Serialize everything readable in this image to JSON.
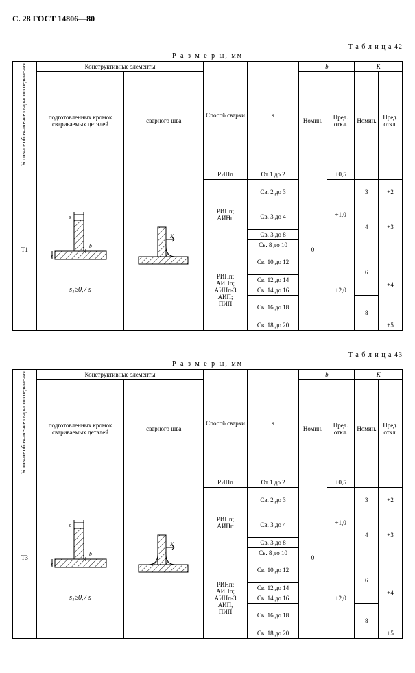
{
  "header": "С. 28  ГОСТ 14806—80",
  "table42": {
    "label": "Т а б л и ц а  42",
    "dimensions": "Р а з м е р ы,  мм",
    "headers": {
      "col1": "Условное обозначение сварного соединения",
      "construct": "Конструктивные элементы",
      "sub1": "подготовленных кромок свариваемых деталей",
      "sub2": "сварного шва",
      "method": "Способ сварки",
      "s": "s",
      "b": "b",
      "K": "K",
      "nomin": "Номин.",
      "pred": "Пред. откл."
    },
    "code": "Т1",
    "formula": "s₁≥0,7 s",
    "rows": [
      {
        "method": "РИНп",
        "s": "От 1 до 2",
        "b_nom": "",
        "b_pred": "+0,5",
        "K_nom": "",
        "K_pred": ""
      },
      {
        "method": "РИНп;\nАИНп",
        "s": "Св. 2 до 3",
        "b_nom": "",
        "b_pred": "+1,0",
        "K_nom": "3",
        "K_pred": "+2"
      },
      {
        "method": "",
        "s": "Св. 3 до 4",
        "b_nom": "",
        "b_pred": "",
        "K_nom": "4",
        "K_pred": "+3"
      },
      {
        "method": "",
        "s": "Св. 3 до 8",
        "b_nom": "",
        "b_pred": "",
        "K_nom": "",
        "K_pred": ""
      },
      {
        "method": "",
        "s": "Св. 8 до 10",
        "b_nom": "0",
        "b_pred": "",
        "K_nom": "",
        "K_pred": ""
      },
      {
        "method": "РИНп;\nАИНп;\nАИНп-З\nАИП;\nПИП",
        "s": "Св. 10 до 12",
        "b_nom": "",
        "b_pred": "+2,0",
        "K_nom": "6",
        "K_pred": "+4"
      },
      {
        "method": "",
        "s": "Св. 12 до 14",
        "b_nom": "",
        "b_pred": "",
        "K_nom": "",
        "K_pred": ""
      },
      {
        "method": "",
        "s": "Св. 14 до 16",
        "b_nom": "",
        "b_pred": "",
        "K_nom": "",
        "K_pred": ""
      },
      {
        "method": "",
        "s": "Св. 16 до 18",
        "b_nom": "",
        "b_pred": "",
        "K_nom": "8",
        "K_pred": ""
      },
      {
        "method": "",
        "s": "Св. 18 до 20",
        "b_nom": "",
        "b_pred": "",
        "K_nom": "",
        "K_pred": "+5"
      }
    ]
  },
  "table43": {
    "label": "Т а б л и ц а  43",
    "dimensions": "Р а з м е р ы,  мм",
    "code": "Т3",
    "formula": "s₁≥0,7 s",
    "rows": [
      {
        "method": "РИНп",
        "s": "От 1 до 2",
        "b_nom": "",
        "b_pred": "+0,5",
        "K_nom": "",
        "K_pred": ""
      },
      {
        "method": "РИНп;\nАИНп",
        "s": "Св. 2 до 3",
        "b_nom": "",
        "b_pred": "+1,0",
        "K_nom": "3",
        "K_pred": "+2"
      },
      {
        "method": "",
        "s": "Св. 3 до 4",
        "b_nom": "",
        "b_pred": "",
        "K_nom": "4",
        "K_pred": "+3"
      },
      {
        "method": "",
        "s": "Св. 3 до 8",
        "b_nom": "",
        "b_pred": "",
        "K_nom": "",
        "K_pred": ""
      },
      {
        "method": "",
        "s": "Св. 8 до 10",
        "b_nom": "0",
        "b_pred": "",
        "K_nom": "",
        "K_pred": ""
      },
      {
        "method": "РИНп;\nАИНп;\nАИНп-З\nАИП,\nПИП",
        "s": "Св. 10 до 12",
        "b_nom": "",
        "b_pred": "+2,0",
        "K_nom": "6",
        "K_pred": "+4"
      },
      {
        "method": "",
        "s": "Св. 12 до 14",
        "b_nom": "",
        "b_pred": "",
        "K_nom": "",
        "K_pred": ""
      },
      {
        "method": "",
        "s": "Св. 14 до 16",
        "b_nom": "",
        "b_pred": "",
        "K_nom": "",
        "K_pred": ""
      },
      {
        "method": "",
        "s": "Св. 16 до 18",
        "b_nom": "",
        "b_pred": "",
        "K_nom": "8",
        "K_pred": ""
      },
      {
        "method": "",
        "s": "Св. 18 до 20",
        "b_nom": "",
        "b_pred": "",
        "K_nom": "",
        "K_pred": "+5"
      }
    ]
  }
}
